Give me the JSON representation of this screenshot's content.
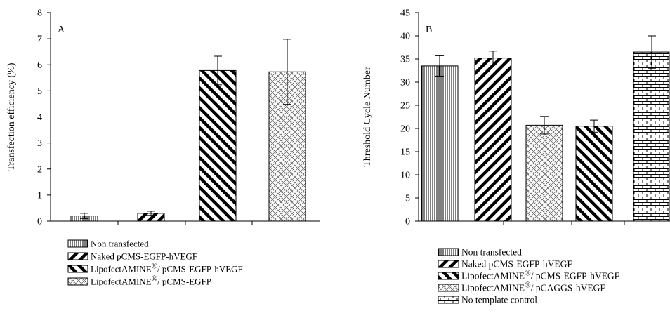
{
  "chart_data": [
    {
      "type": "bar",
      "panel_label": "A",
      "ylabel": "Transfection efficiency (%)",
      "ylim": [
        0,
        8
      ],
      "yticks": [
        0,
        1,
        2,
        3,
        4,
        5,
        6,
        7,
        8
      ],
      "categories": [
        "Non transfected",
        "Naked pCMS-EGFP-hVEGF",
        "LipofectAMINE®/ pCMS-EGFP-hVEGF",
        "LipofectAMINE®/ pCMS-EGFP"
      ],
      "values": [
        0.2,
        0.3,
        5.78,
        5.73
      ],
      "errors": [
        0.1,
        0.08,
        0.55,
        1.25
      ],
      "patterns": [
        "vertical",
        "hatch-back",
        "hatch-fwd",
        "crosshatch"
      ],
      "legend": [
        {
          "pre": "Non transfected",
          "post": ""
        },
        {
          "pre": "Naked pCMS-EGFP-hVEGF",
          "post": ""
        },
        {
          "pre": "LipofectAMINE",
          "post": "/ pCMS-EGFP-hVEGF"
        },
        {
          "pre": "LipofectAMINE",
          "post": "/ pCMS-EGFP"
        }
      ],
      "legend_symbol": "®"
    },
    {
      "type": "bar",
      "panel_label": "B",
      "ylabel": "Threshold Cycle Number",
      "ylim": [
        0,
        45
      ],
      "yticks": [
        0,
        5,
        10,
        15,
        20,
        25,
        30,
        35,
        40,
        45
      ],
      "categories": [
        "Non transfected",
        "Naked pCMS-EGFP-hVEGF",
        "LipofectAMINE®/ pCAGGS-hVEGF",
        "LipofectAMINE®/ pCMS-EGFP-hVEGF",
        "No template control"
      ],
      "values": [
        33.5,
        35.2,
        20.7,
        20.5,
        36.5
      ],
      "errors": [
        2.2,
        1.5,
        1.9,
        1.3,
        3.5
      ],
      "patterns": [
        "vertical",
        "hatch-back",
        "crosshatch",
        "hatch-fwd",
        "brick"
      ],
      "legend": [
        {
          "pre": "Non transfected",
          "post": "",
          "pattern": "vertical"
        },
        {
          "pre": "Naked pCMS-EGFP-hVEGF",
          "post": "",
          "pattern": "hatch-back"
        },
        {
          "pre": "LipofectAMINE",
          "post": "/ pCMS-EGFP-hVEGF",
          "pattern": "hatch-fwd"
        },
        {
          "pre": "LipofectAMINE",
          "post": "/ pCAGGS-hVEGF",
          "pattern": "crosshatch"
        },
        {
          "pre": "No template control",
          "post": "",
          "pattern": "brick"
        }
      ],
      "legend_symbol": "®"
    }
  ]
}
